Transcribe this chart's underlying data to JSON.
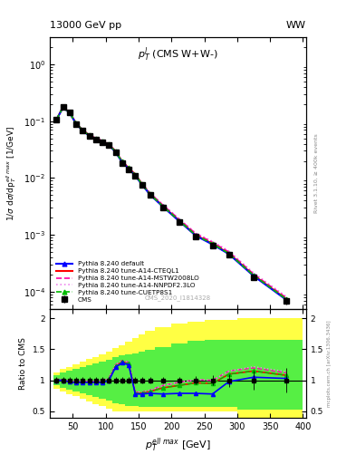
{
  "title_left": "13000 GeV pp",
  "title_right": "WW",
  "panel_title": "p$_T^l$ (CMS W+W-)",
  "ylabel_main": "1/σ dσ/dp$_T^{ell max}$ [1/GeV]",
  "ylabel_ratio": "Ratio to CMS",
  "right_label_main": "Rivet 3.1.10, ≥ 400k events",
  "right_label_ratio": "mcplots.cern.ch [arXiv:1306.3436]",
  "watermark": "CMS_2020_I1814328",
  "pt_mids": [
    25,
    35,
    45,
    55,
    65,
    75,
    85,
    95,
    105,
    115,
    125,
    135,
    145,
    155,
    167.5,
    187.5,
    212.5,
    237.5,
    262.5,
    287.5,
    325,
    375
  ],
  "cms_values": [
    0.105,
    0.175,
    0.14,
    0.09,
    0.068,
    0.055,
    0.048,
    0.043,
    0.038,
    0.028,
    0.018,
    0.014,
    0.011,
    0.0075,
    0.005,
    0.003,
    0.0017,
    0.00095,
    0.00065,
    0.00045,
    0.00018,
    7e-05
  ],
  "cms_errors": [
    0.008,
    0.01,
    0.008,
    0.005,
    0.004,
    0.003,
    0.003,
    0.003,
    0.003,
    0.002,
    0.0015,
    0.001,
    0.001,
    0.0006,
    0.0004,
    0.0003,
    0.00015,
    9e-05,
    6e-05,
    4e-05,
    2e-05,
    1e-05
  ],
  "default_values": [
    0.105,
    0.175,
    0.14,
    0.09,
    0.068,
    0.055,
    0.048,
    0.043,
    0.038,
    0.0285,
    0.019,
    0.0145,
    0.011,
    0.0077,
    0.0051,
    0.0031,
    0.00172,
    0.00096,
    0.00068,
    0.00046,
    0.00019,
    7.2e-05
  ],
  "cteql1_values": [
    0.106,
    0.176,
    0.141,
    0.091,
    0.069,
    0.056,
    0.049,
    0.044,
    0.039,
    0.029,
    0.0195,
    0.015,
    0.0115,
    0.0078,
    0.0052,
    0.00315,
    0.00175,
    0.00098,
    0.0007,
    0.00047,
    0.000195,
    7.4e-05
  ],
  "mstw_values": [
    0.107,
    0.177,
    0.142,
    0.092,
    0.07,
    0.057,
    0.05,
    0.045,
    0.04,
    0.0295,
    0.0198,
    0.0152,
    0.0117,
    0.008,
    0.0054,
    0.0033,
    0.00185,
    0.00104,
    0.00074,
    0.0005,
    0.000205,
    7.8e-05
  ],
  "nnpdf_values": [
    0.107,
    0.177,
    0.142,
    0.092,
    0.07,
    0.057,
    0.05,
    0.045,
    0.04,
    0.0296,
    0.02,
    0.0154,
    0.0118,
    0.0081,
    0.0055,
    0.0034,
    0.00188,
    0.00107,
    0.00077,
    0.00052,
    0.000215,
    8.2e-05
  ],
  "cuetp8s1_values": [
    0.106,
    0.176,
    0.141,
    0.091,
    0.069,
    0.056,
    0.049,
    0.044,
    0.039,
    0.029,
    0.0195,
    0.015,
    0.0115,
    0.0078,
    0.0052,
    0.00315,
    0.00175,
    0.00098,
    0.0007,
    0.00047,
    0.000195,
    7.4e-05
  ],
  "ratio_bin_edges": [
    20,
    30,
    40,
    50,
    60,
    70,
    80,
    90,
    100,
    110,
    120,
    130,
    140,
    150,
    160,
    175,
    200,
    225,
    250,
    275,
    300,
    350,
    400
  ],
  "ratio_pts": [
    25,
    35,
    45,
    55,
    65,
    75,
    85,
    95,
    105,
    115,
    125,
    135,
    145,
    155,
    167.5,
    187.5,
    212.5,
    237.5,
    262.5,
    287.5,
    325,
    375
  ],
  "ratio_yellow_lo": [
    0.87,
    0.82,
    0.78,
    0.74,
    0.7,
    0.66,
    0.62,
    0.58,
    0.55,
    0.5,
    0.5,
    0.5,
    0.5,
    0.5,
    0.5,
    0.5,
    0.5,
    0.5,
    0.5,
    0.5,
    0.4,
    0.4
  ],
  "ratio_yellow_hi": [
    1.13,
    1.18,
    1.22,
    1.26,
    1.3,
    1.34,
    1.38,
    1.42,
    1.46,
    1.52,
    1.56,
    1.62,
    1.68,
    1.74,
    1.8,
    1.86,
    1.92,
    1.95,
    1.97,
    1.97,
    2.0,
    2.0
  ],
  "ratio_green_lo": [
    0.92,
    0.88,
    0.85,
    0.82,
    0.79,
    0.76,
    0.73,
    0.7,
    0.68,
    0.63,
    0.61,
    0.59,
    0.58,
    0.57,
    0.57,
    0.57,
    0.57,
    0.57,
    0.57,
    0.57,
    0.53,
    0.53
  ],
  "ratio_green_hi": [
    1.08,
    1.12,
    1.15,
    1.18,
    1.21,
    1.24,
    1.27,
    1.3,
    1.33,
    1.37,
    1.4,
    1.42,
    1.44,
    1.46,
    1.49,
    1.54,
    1.6,
    1.63,
    1.65,
    1.65,
    1.65,
    1.65
  ],
  "ratio_default": [
    1.0,
    1.0,
    0.975,
    0.96,
    0.97,
    0.965,
    0.97,
    0.96,
    1.0,
    1.21,
    1.28,
    1.25,
    0.78,
    0.78,
    0.79,
    0.78,
    0.79,
    0.79,
    0.78,
    0.98,
    1.05,
    1.03
  ],
  "ratio_cteql1": [
    1.01,
    1.005,
    0.98,
    0.97,
    0.975,
    0.97,
    0.975,
    0.97,
    1.02,
    1.23,
    1.3,
    1.27,
    0.79,
    0.795,
    0.82,
    0.88,
    0.92,
    0.96,
    0.95,
    1.1,
    1.15,
    1.08
  ],
  "ratio_mstw": [
    1.02,
    1.01,
    0.99,
    0.98,
    0.985,
    0.98,
    0.985,
    0.98,
    1.04,
    1.25,
    1.32,
    1.29,
    0.81,
    0.81,
    0.84,
    0.92,
    0.97,
    1.01,
    1.0,
    1.15,
    1.2,
    1.12
  ],
  "ratio_nnpdf": [
    1.02,
    1.01,
    0.99,
    0.98,
    0.985,
    0.98,
    0.985,
    0.98,
    1.04,
    1.25,
    1.32,
    1.29,
    0.81,
    0.81,
    0.84,
    0.92,
    0.97,
    1.01,
    1.0,
    1.15,
    1.22,
    1.14
  ],
  "ratio_cuetp8s1": [
    1.01,
    1.005,
    0.98,
    0.97,
    0.975,
    0.97,
    0.975,
    0.97,
    1.02,
    1.23,
    1.3,
    1.27,
    0.79,
    0.795,
    0.82,
    0.88,
    0.92,
    0.96,
    0.95,
    1.1,
    1.15,
    1.08
  ],
  "ratio_cms_err": [
    0.05,
    0.05,
    0.05,
    0.05,
    0.05,
    0.05,
    0.05,
    0.05,
    0.05,
    0.05,
    0.05,
    0.05,
    0.05,
    0.05,
    0.05,
    0.05,
    0.05,
    0.07,
    0.08,
    0.1,
    0.15,
    0.2
  ],
  "color_cms": "#000000",
  "color_default": "#0000ff",
  "color_cteql1": "#ff0000",
  "color_mstw": "#ff00aa",
  "color_nnpdf": "#ee88ee",
  "color_cuetp8s1": "#00bb00",
  "color_yellow": "#ffff44",
  "color_green": "#44ee44",
  "ylim_main": [
    5e-05,
    3.0
  ],
  "ylim_ratio": [
    0.4,
    2.15
  ],
  "xlim": [
    15,
    405
  ]
}
